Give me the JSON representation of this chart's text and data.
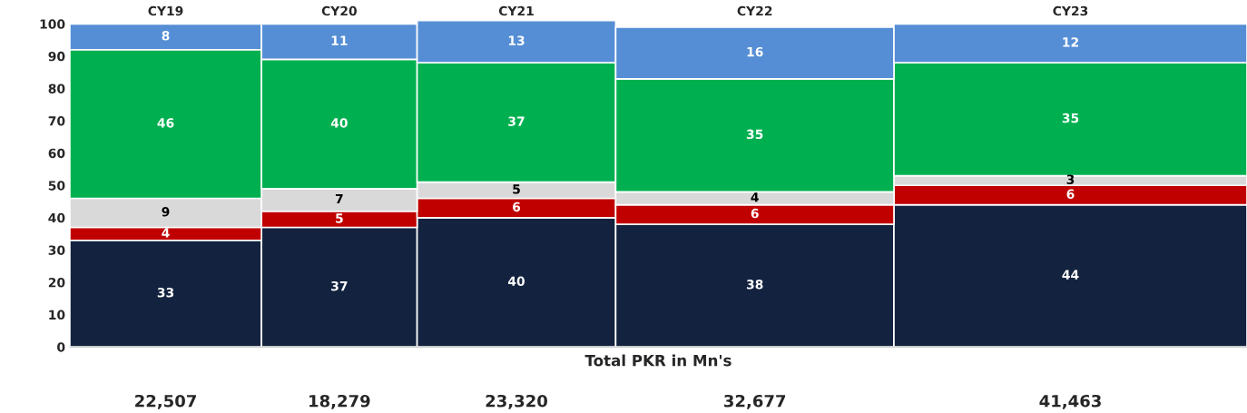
{
  "chart_data": {
    "type": "bar",
    "stacked": true,
    "data_labels": true,
    "grid": false,
    "legend": false,
    "categories": [
      "CY19",
      "CY20",
      "CY21",
      "CY22",
      "CY23"
    ],
    "xlabel": "Total PKR in Mn's",
    "annotations": [
      "22,507",
      "18,279",
      "23,320",
      "32,677",
      "41,463"
    ],
    "ylim": [
      0,
      101
    ],
    "yticks": [
      0,
      10,
      20,
      30,
      40,
      50,
      60,
      70,
      80,
      90,
      100
    ],
    "series": [
      {
        "color": "#13233f",
        "values": [
          33,
          37,
          40,
          38,
          44
        ]
      },
      {
        "color": "#c00000",
        "values": [
          4,
          5,
          6,
          6,
          6
        ]
      },
      {
        "color": "#d9d9d9",
        "values": [
          9,
          7,
          5,
          4,
          3
        ]
      },
      {
        "color": "#00b050",
        "values": [
          46,
          40,
          37,
          35,
          35
        ]
      },
      {
        "color": "#558ed5",
        "values": [
          8,
          11,
          13,
          16,
          12
        ]
      }
    ]
  }
}
